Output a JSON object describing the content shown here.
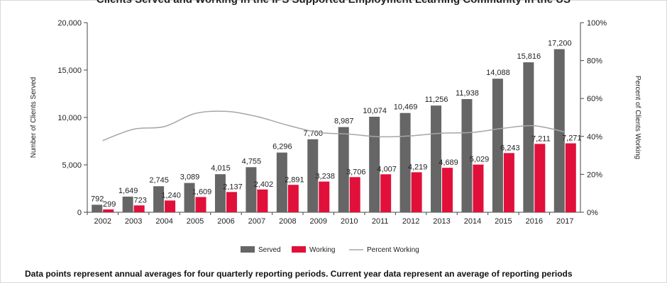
{
  "chart_data": {
    "type": "bar",
    "title": "Clients Served and Working in the IPS Supported Employment Learning Community in the US",
    "ylabel": "Number of Clients Served",
    "y2label": "Percent of Clients Working",
    "categories": [
      "2002",
      "2003",
      "2004",
      "2005",
      "2006",
      "2007",
      "2008",
      "2009",
      "2010",
      "2011",
      "2012",
      "2013",
      "2014",
      "2015",
      "2016",
      "2017"
    ],
    "ylim": [
      0,
      20000
    ],
    "y_ticks": [
      "0",
      "5,000",
      "10,000",
      "15,000",
      "20,000"
    ],
    "y2lim": [
      0,
      100
    ],
    "y2_ticks": [
      "0%",
      "20%",
      "40%",
      "60%",
      "80%",
      "100%"
    ],
    "grid": false,
    "legend_position": "bottom",
    "series": [
      {
        "name": "Served",
        "kind": "bar",
        "color": "#666666",
        "values": [
          792,
          1649,
          2745,
          3089,
          4015,
          4755,
          6296,
          7700,
          8987,
          10074,
          10469,
          11256,
          11938,
          14088,
          15816,
          17200
        ],
        "labels": [
          "792",
          "1,649",
          "2,745",
          "3,089",
          "4,015",
          "4,755",
          "6,296",
          "7,700",
          "8,987",
          "10,074",
          "10,469",
          "11,256",
          "11,938",
          "14,088",
          "15,816",
          "17,200"
        ]
      },
      {
        "name": "Working",
        "kind": "bar",
        "color": "#e0103a",
        "values": [
          299,
          723,
          1240,
          1609,
          2137,
          2402,
          2891,
          3238,
          3706,
          4007,
          4219,
          4689,
          5029,
          6243,
          7211,
          7271
        ],
        "labels": [
          "299",
          "723",
          "1,240",
          "1,609",
          "2,137",
          "2,402",
          "2,891",
          "3,238",
          "3,706",
          "4,007",
          "4,219",
          "4,689",
          "5,029",
          "6,243",
          "7,211",
          "7,271"
        ]
      },
      {
        "name": "Percent Working",
        "kind": "line",
        "axis": "right",
        "color": "#a6a6a6",
        "values": [
          37.8,
          43.8,
          45.2,
          52.1,
          53.2,
          50.5,
          45.9,
          42.1,
          41.2,
          39.8,
          40.3,
          41.7,
          42.1,
          44.3,
          45.6,
          42.3
        ]
      }
    ]
  },
  "note": "Data points represent annual averages for four quarterly reporting periods. Current year data represent an average of reporting periods"
}
